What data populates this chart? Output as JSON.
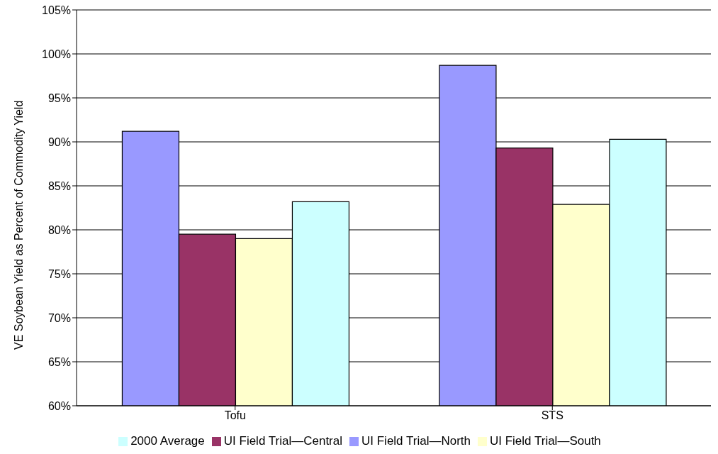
{
  "chart_data": {
    "type": "bar",
    "ylabel": "VE Soybean Yield as Percent of Commodity Yield",
    "categories": [
      "Tofu",
      "STS"
    ],
    "series": [
      {
        "name": "UI Field Trial—North",
        "color": "#9999ff",
        "values": [
          91.2,
          98.7
        ]
      },
      {
        "name": "UI Field Trial—Central",
        "color": "#993366",
        "values": [
          79.5,
          89.3
        ]
      },
      {
        "name": "UI Field Trial—South",
        "color": "#ffffcc",
        "values": [
          79.0,
          82.9
        ]
      },
      {
        "name": "2000 Average",
        "color": "#ccffff",
        "values": [
          83.2,
          90.3
        ]
      }
    ],
    "ylim": [
      60,
      105
    ],
    "yticks": [
      {
        "value": 60,
        "label": "60%"
      },
      {
        "value": 65,
        "label": "65%"
      },
      {
        "value": 70,
        "label": "70%"
      },
      {
        "value": 75,
        "label": "75%"
      },
      {
        "value": 80,
        "label": "80%"
      },
      {
        "value": 85,
        "label": "85%"
      },
      {
        "value": 90,
        "label": "90%"
      },
      {
        "value": 95,
        "label": "95%"
      },
      {
        "value": 100,
        "label": "100%"
      },
      {
        "value": 105,
        "label": "105%"
      }
    ],
    "grid": "y",
    "legend": "bottom"
  }
}
